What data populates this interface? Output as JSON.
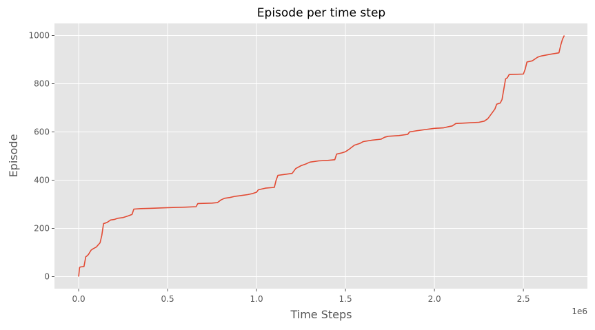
{
  "chart_data": {
    "type": "line",
    "title": "Episode per time step",
    "xlabel": "Time Steps",
    "ylabel": "Episode",
    "x_offset_label": "1e6",
    "xlim": [
      -0.136,
      2.86
    ],
    "ylim": [
      -50,
      1050
    ],
    "grid": true,
    "x_ticks": [
      {
        "value": 0.0,
        "label": "0.0"
      },
      {
        "value": 0.5,
        "label": "0.5"
      },
      {
        "value": 1.0,
        "label": "1.0"
      },
      {
        "value": 1.5,
        "label": "1.5"
      },
      {
        "value": 2.0,
        "label": "2.0"
      },
      {
        "value": 2.5,
        "label": "2.5"
      }
    ],
    "y_ticks": [
      {
        "value": 0,
        "label": "0"
      },
      {
        "value": 200,
        "label": "200"
      },
      {
        "value": 400,
        "label": "400"
      },
      {
        "value": 600,
        "label": "600"
      },
      {
        "value": 800,
        "label": "800"
      },
      {
        "value": 1000,
        "label": "1000"
      }
    ],
    "colors": {
      "plot_background": "#e5e5e5",
      "line": "#e24a33"
    },
    "series": [
      {
        "x": [
          0,
          0.005,
          0.01,
          0.03,
          0.04,
          0.05,
          0.055,
          0.07,
          0.08,
          0.1,
          0.11,
          0.12,
          0.13,
          0.14,
          0.15,
          0.16,
          0.17,
          0.18,
          0.2,
          0.22,
          0.25,
          0.28,
          0.3,
          0.31,
          0.35,
          0.4,
          0.5,
          0.6,
          0.66,
          0.67,
          0.75,
          0.78,
          0.8,
          0.82,
          0.85,
          0.88,
          0.9,
          0.92,
          0.95,
          0.98,
          1.0,
          1.01,
          1.05,
          1.1,
          1.11,
          1.12,
          1.15,
          1.2,
          1.22,
          1.25,
          1.28,
          1.3,
          1.35,
          1.4,
          1.44,
          1.45,
          1.48,
          1.5,
          1.52,
          1.55,
          1.58,
          1.6,
          1.65,
          1.7,
          1.72,
          1.74,
          1.8,
          1.85,
          1.86,
          1.9,
          1.95,
          2.0,
          2.05,
          2.08,
          2.1,
          2.12,
          2.2,
          2.25,
          2.28,
          2.3,
          2.32,
          2.34,
          2.35,
          2.37,
          2.38,
          2.4,
          2.41,
          2.42,
          2.5,
          2.51,
          2.52,
          2.55,
          2.58,
          2.6,
          2.65,
          2.7,
          2.71,
          2.72,
          2.73
        ],
        "values": [
          0,
          38,
          40,
          42,
          82,
          88,
          92,
          110,
          115,
          123,
          132,
          140,
          170,
          220,
          222,
          225,
          230,
          235,
          237,
          242,
          245,
          252,
          258,
          280,
          282,
          283,
          286,
          288,
          290,
          303,
          305,
          307,
          318,
          325,
          328,
          333,
          335,
          337,
          340,
          345,
          350,
          360,
          367,
          370,
          400,
          420,
          423,
          428,
          448,
          460,
          468,
          475,
          480,
          482,
          485,
          508,
          513,
          518,
          528,
          545,
          552,
          560,
          566,
          570,
          578,
          582,
          585,
          590,
          600,
          605,
          610,
          615,
          617,
          622,
          625,
          635,
          638,
          640,
          645,
          655,
          675,
          695,
          715,
          720,
          735,
          820,
          825,
          838,
          840,
          860,
          890,
          895,
          910,
          915,
          922,
          928,
          960,
          985,
          1000
        ]
      }
    ]
  }
}
